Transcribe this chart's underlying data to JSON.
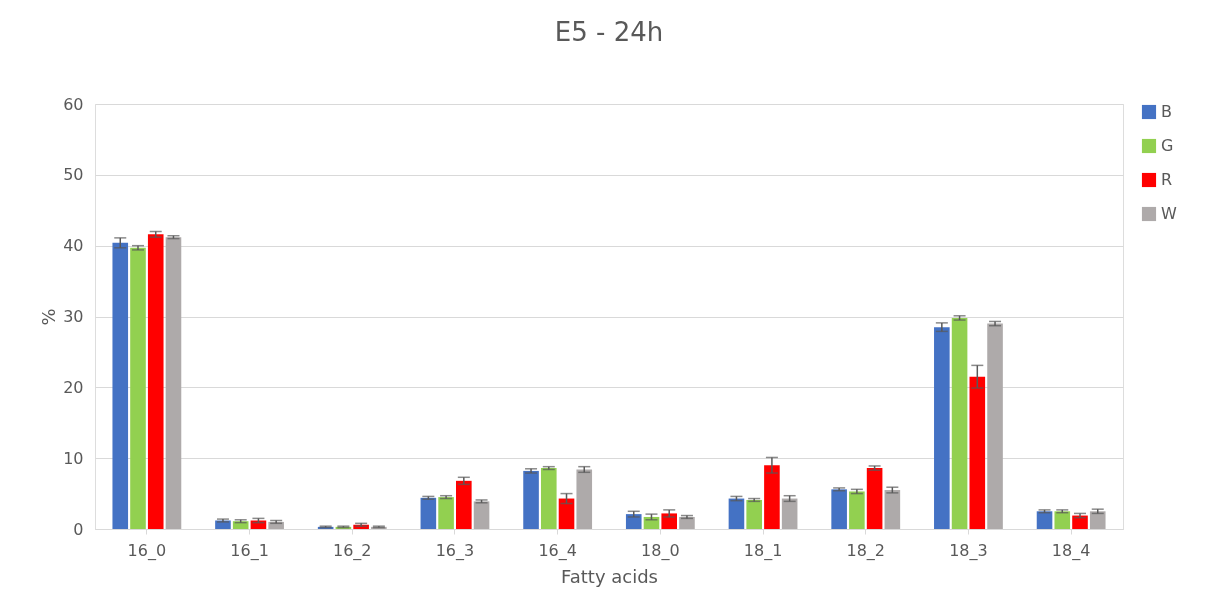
{
  "chart_data": {
    "type": "bar",
    "title": "E5 - 24h",
    "xlabel": "Fatty acids",
    "ylabel": "%",
    "categories": [
      "16_0",
      "16_1",
      "16_2",
      "16_3",
      "16_4",
      "18_0",
      "18_1",
      "18_2",
      "18_3",
      "18_4"
    ],
    "series": [
      {
        "name": "B",
        "color": "#4472c4",
        "values": [
          40.4,
          1.2,
          0.3,
          4.4,
          8.2,
          2.1,
          4.3,
          5.6,
          28.5,
          2.5
        ],
        "errors": [
          0.7,
          0.2,
          0.1,
          0.2,
          0.3,
          0.4,
          0.3,
          0.2,
          0.6,
          0.2
        ]
      },
      {
        "name": "G",
        "color": "#92d050",
        "values": [
          39.7,
          1.1,
          0.3,
          4.5,
          8.6,
          1.7,
          4.1,
          5.3,
          29.8,
          2.5
        ],
        "errors": [
          0.3,
          0.2,
          0.1,
          0.2,
          0.2,
          0.4,
          0.2,
          0.3,
          0.3,
          0.2
        ]
      },
      {
        "name": "R",
        "color": "#ff0000",
        "values": [
          41.6,
          1.2,
          0.6,
          6.8,
          4.3,
          2.2,
          9.0,
          8.6,
          21.5,
          1.9
        ],
        "errors": [
          0.4,
          0.3,
          0.2,
          0.5,
          0.7,
          0.5,
          1.1,
          0.3,
          1.6,
          0.3
        ]
      },
      {
        "name": "W",
        "color": "#aeaaaa",
        "values": [
          41.2,
          1.0,
          0.3,
          3.9,
          8.4,
          1.7,
          4.3,
          5.5,
          29.0,
          2.5
        ],
        "errors": [
          0.2,
          0.2,
          0.1,
          0.2,
          0.4,
          0.2,
          0.4,
          0.4,
          0.3,
          0.3
        ]
      }
    ],
    "ylim": [
      0,
      60
    ],
    "yticks": [
      0,
      10,
      20,
      30,
      40,
      50,
      60
    ],
    "grid": "y",
    "legend": "right"
  }
}
